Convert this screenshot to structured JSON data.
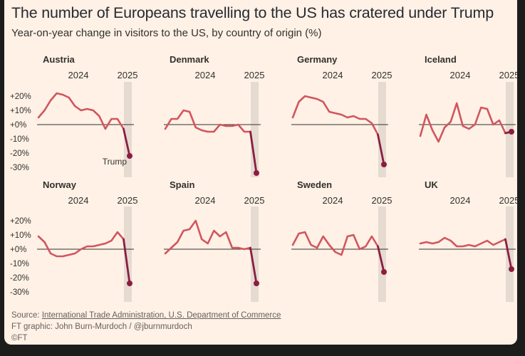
{
  "title": "The number of Europeans travelling to the US has cratered under Trump",
  "subtitle": "Year-on-year change in visitors to the US, by country of origin (%)",
  "footer": {
    "source_label": "Source: ",
    "source_link": "International Trade Administration, U.S. Department of Commerce",
    "graphic": "FT graphic: John Burn-Murdoch / @jburnmurdoch",
    "logo": "©FT"
  },
  "colors": {
    "line": "#d1555f",
    "end": "#8c1d40",
    "band": "#e5dbd1",
    "zero": "#33302e",
    "text": "#33302e"
  },
  "chart_data": {
    "type": "line",
    "ylim": [
      -35,
      25
    ],
    "yticks": [
      20,
      10,
      0,
      -10,
      -20,
      -30
    ],
    "ytick_labels": [
      "+20%",
      "+10%",
      "+0%",
      "-10%",
      "-20%",
      "-30%"
    ],
    "xtick_labels": [
      "2024",
      "2025"
    ],
    "annotation": {
      "panel": "Austria",
      "text": "Trump"
    },
    "panels": [
      {
        "name": "Austria",
        "values": [
          5,
          10,
          17,
          22,
          21,
          19,
          13,
          10,
          11,
          10,
          6,
          -3,
          4,
          4,
          -3,
          -22
        ]
      },
      {
        "name": "Denmark",
        "values": [
          -3,
          4,
          4,
          10,
          9,
          -2,
          -4,
          -5,
          -5,
          0,
          -1,
          -1,
          0,
          -5,
          -5,
          -34
        ]
      },
      {
        "name": "Germany",
        "values": [
          5,
          16,
          20,
          19,
          18,
          16,
          9,
          8,
          7,
          5,
          6,
          4,
          4,
          1,
          -7,
          -28
        ]
      },
      {
        "name": "Iceland",
        "values": [
          -8,
          7,
          -4,
          -12,
          -2,
          2,
          15,
          -1,
          -3,
          0,
          12,
          11,
          0,
          3,
          -6,
          -5
        ]
      },
      {
        "name": "Norway",
        "values": [
          9,
          5,
          -3,
          -5,
          -5,
          -4,
          -3,
          0,
          2,
          2,
          3,
          4,
          6,
          12,
          7,
          -24
        ]
      },
      {
        "name": "Spain",
        "values": [
          -3,
          1,
          5,
          13,
          14,
          20,
          7,
          4,
          13,
          9,
          12,
          1,
          1,
          0,
          1,
          -24
        ]
      },
      {
        "name": "Sweden",
        "values": [
          3,
          11,
          12,
          3,
          1,
          9,
          3,
          -2,
          -4,
          9,
          10,
          0,
          2,
          9,
          2,
          -16
        ]
      },
      {
        "name": "UK",
        "values": [
          4,
          5,
          4,
          5,
          8,
          6,
          2,
          2,
          3,
          2,
          4,
          6,
          3,
          5,
          7,
          -14
        ]
      }
    ]
  }
}
